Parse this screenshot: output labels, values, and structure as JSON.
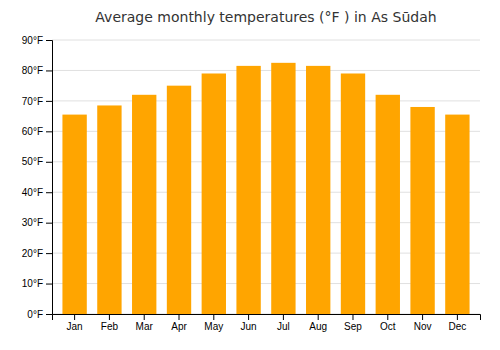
{
  "chart_data": {
    "type": "bar",
    "title": "Average monthly temperatures (°F ) in As Sūdah",
    "categories": [
      "Jan",
      "Feb",
      "Mar",
      "Apr",
      "May",
      "Jun",
      "Jul",
      "Aug",
      "Sep",
      "Oct",
      "Nov",
      "Dec"
    ],
    "values": [
      65.5,
      68.5,
      72,
      75,
      79,
      81.5,
      82.5,
      81.5,
      79,
      72,
      68,
      65.5
    ],
    "color": "#FFA500",
    "ylim": [
      0,
      90
    ],
    "yticks": [
      {
        "value": 0,
        "label": "0°F"
      },
      {
        "value": 10,
        "label": "10°F"
      },
      {
        "value": 20,
        "label": "20°F"
      },
      {
        "value": 30,
        "label": "30°F"
      },
      {
        "value": 40,
        "label": "40°F"
      },
      {
        "value": 50,
        "label": "50°F"
      },
      {
        "value": 60,
        "label": "60°F"
      },
      {
        "value": 70,
        "label": "70°F"
      },
      {
        "value": 80,
        "label": "80°F"
      },
      {
        "value": 90,
        "label": "90°F"
      }
    ],
    "grid": true
  }
}
